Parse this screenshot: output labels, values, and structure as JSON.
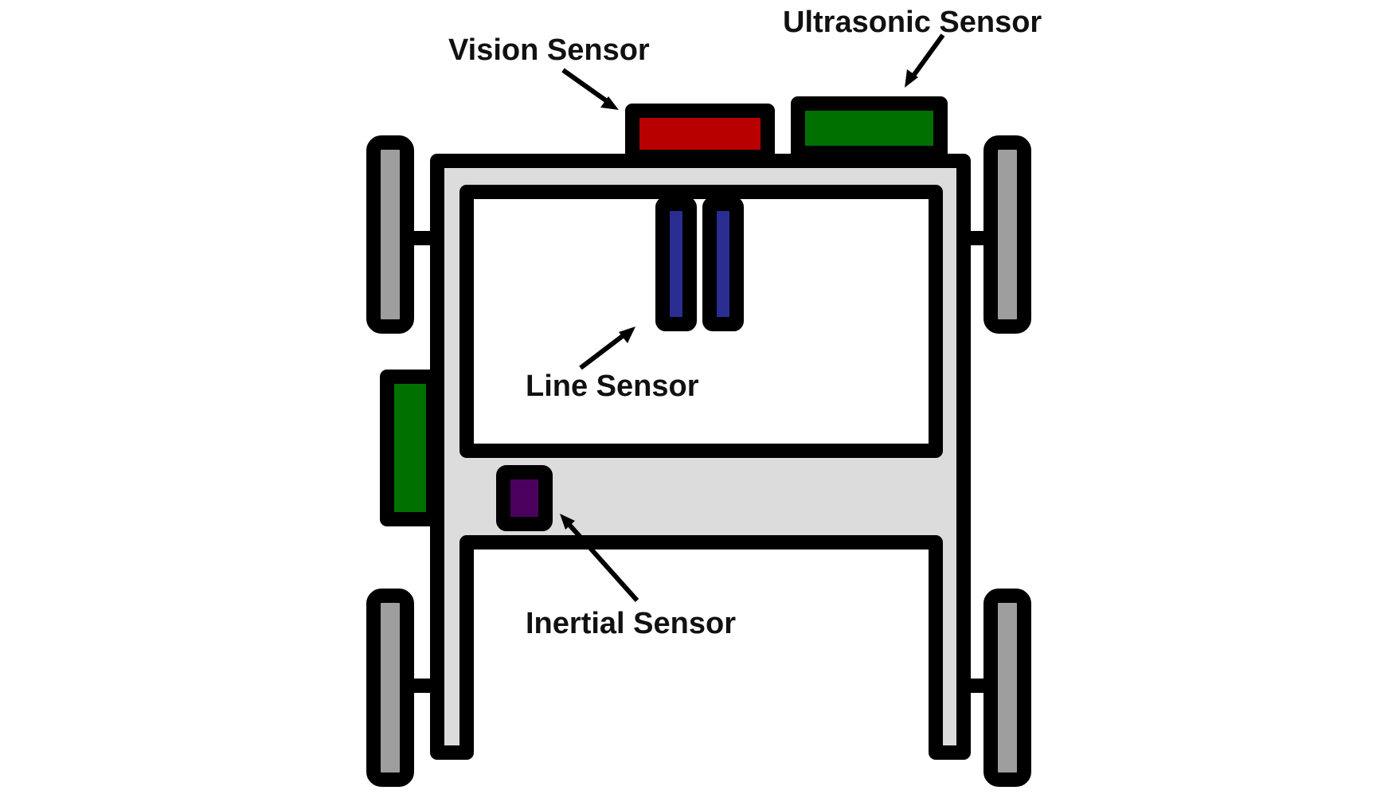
{
  "labels": {
    "vision": "Vision Sensor",
    "ultrasonic": "Ultrasonic Sensor",
    "line": "Line Sensor",
    "inertial": "Inertial Sensor"
  },
  "colors": {
    "outline": "#000000",
    "frame": "#dcdcdc",
    "wheel": "#9e9e9e",
    "vision": "#b80000",
    "ultrasonic": "#007000",
    "side_sensor": "#007000",
    "line_sensor": "#2a2d91",
    "inertial": "#4b005e",
    "background": "#ffffff"
  }
}
